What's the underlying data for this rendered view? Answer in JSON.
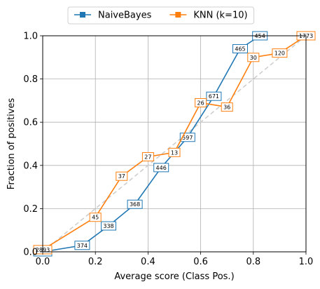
{
  "chart_data": {
    "type": "line",
    "title": "",
    "xlabel": "Average score (Class Pos.)",
    "ylabel": "Fraction of positives",
    "xlim": [
      0,
      1
    ],
    "ylim": [
      0,
      1
    ],
    "xticks": [
      "0.0",
      "0.2",
      "0.4",
      "0.6",
      "0.8",
      "1.0"
    ],
    "yticks": [
      "0.0",
      "0.2",
      "0.4",
      "0.6",
      "0.8",
      "1.0"
    ],
    "grid": true,
    "legend_position": "top-center",
    "reference_line": {
      "from": [
        0,
        0
      ],
      "to": [
        1,
        1
      ],
      "style": "dashed",
      "color": "#cccccc"
    },
    "series": [
      {
        "name": "NaiveBayes",
        "color": "#1f77b4",
        "marker": "square",
        "points": [
          {
            "x": 0.0,
            "y": 0.0,
            "count": "2893"
          },
          {
            "x": 0.15,
            "y": 0.03,
            "count": "374"
          },
          {
            "x": 0.25,
            "y": 0.12,
            "count": "338"
          },
          {
            "x": 0.35,
            "y": 0.22,
            "count": "368"
          },
          {
            "x": 0.45,
            "y": 0.39,
            "count": "446"
          },
          {
            "x": 0.55,
            "y": 0.53,
            "count": "597"
          },
          {
            "x": 0.65,
            "y": 0.72,
            "count": "671"
          },
          {
            "x": 0.75,
            "y": 0.94,
            "count": "465"
          },
          {
            "x": 0.825,
            "y": 1.0,
            "count": "454"
          }
        ]
      },
      {
        "name": "KNN (k=10)",
        "color": "#ff7f0e",
        "marker": "square",
        "points": [
          {
            "x": 0.0,
            "y": 0.01,
            "count": "2893"
          },
          {
            "x": 0.2,
            "y": 0.16,
            "count": "45"
          },
          {
            "x": 0.3,
            "y": 0.35,
            "count": "37"
          },
          {
            "x": 0.4,
            "y": 0.44,
            "count": "27"
          },
          {
            "x": 0.5,
            "y": 0.46,
            "count": "13"
          },
          {
            "x": 0.6,
            "y": 0.69,
            "count": "26"
          },
          {
            "x": 0.7,
            "y": 0.67,
            "count": "36"
          },
          {
            "x": 0.8,
            "y": 0.9,
            "count": "30"
          },
          {
            "x": 0.9,
            "y": 0.92,
            "count": "120"
          },
          {
            "x": 1.0,
            "y": 1.0,
            "count": "1773"
          }
        ]
      }
    ]
  }
}
